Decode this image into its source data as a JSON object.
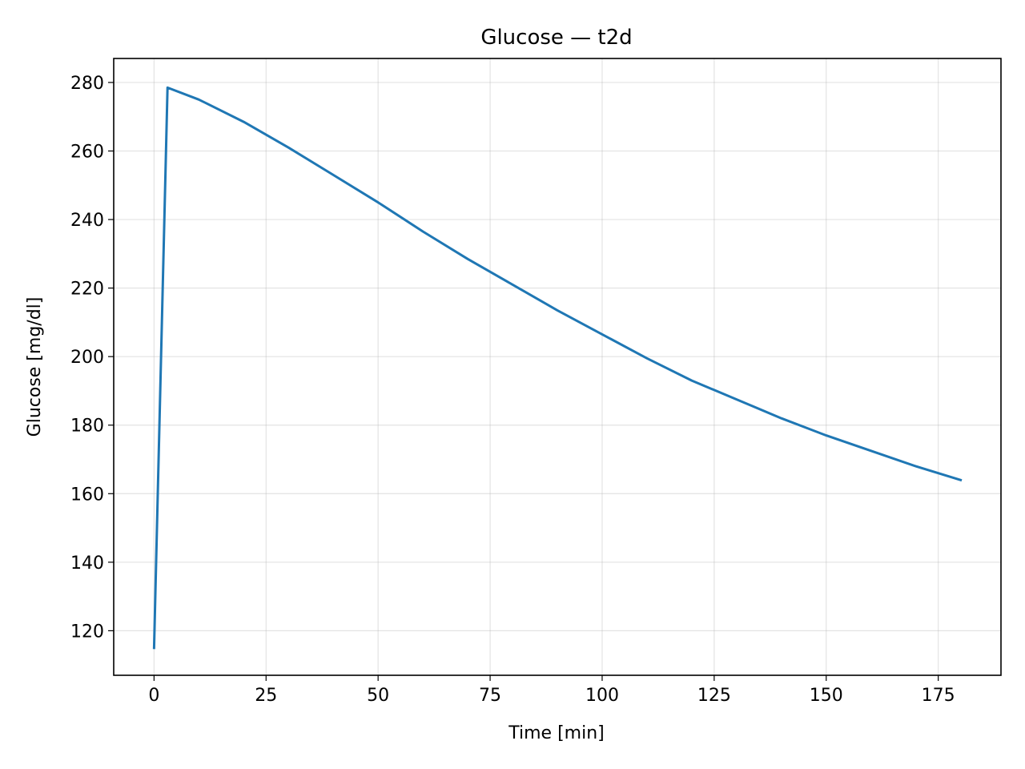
{
  "chart_data": {
    "type": "line",
    "title": "Glucose — t2d",
    "xlabel": "Time [min]",
    "ylabel": "Glucose [mg/dl]",
    "xlim": [
      -9,
      189
    ],
    "ylim": [
      107,
      287
    ],
    "x_ticks": [
      0,
      25,
      50,
      75,
      100,
      125,
      150,
      175
    ],
    "y_ticks": [
      120,
      140,
      160,
      180,
      200,
      220,
      240,
      260,
      280
    ],
    "grid": true,
    "line_color": "#1f77b4",
    "series": [
      {
        "x": [
          0,
          3,
          10,
          20,
          30,
          40,
          50,
          60,
          70,
          80,
          90,
          100,
          110,
          120,
          130,
          140,
          150,
          160,
          170,
          180
        ],
        "y": [
          115,
          278.5,
          275,
          268.5,
          261,
          253,
          245,
          236.5,
          228.5,
          221,
          213.5,
          206.5,
          199.5,
          193,
          187.5,
          182,
          177,
          172.5,
          168,
          164
        ]
      }
    ]
  }
}
